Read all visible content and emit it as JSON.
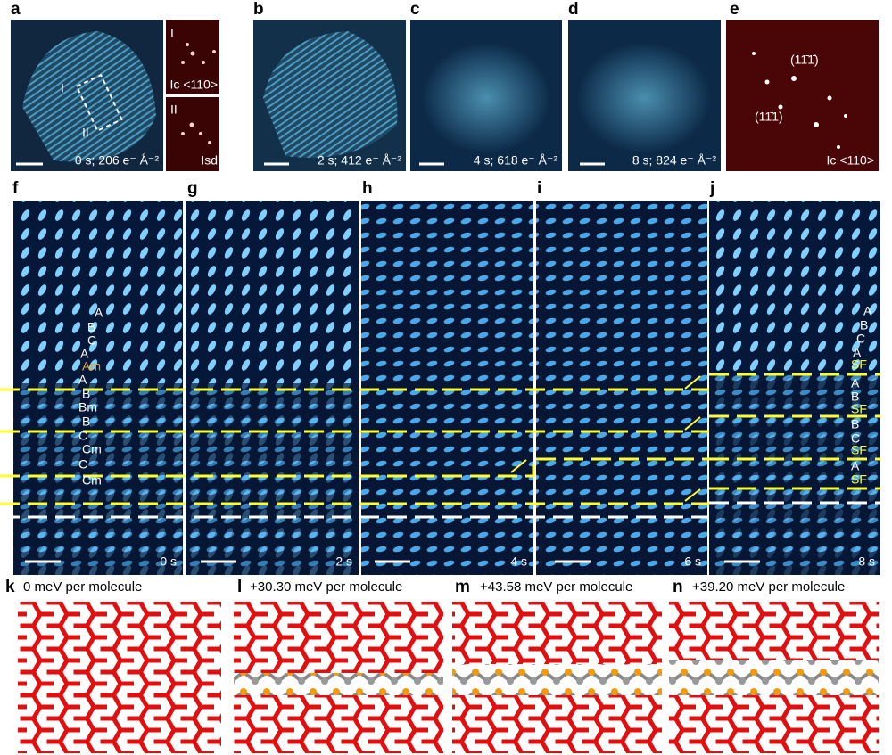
{
  "top": [
    {
      "label": "a",
      "regions": [
        "I",
        "II"
      ],
      "caption": "0 s; 206 e⁻ Å⁻²",
      "insets": [
        {
          "label": "I",
          "caption": "Ic <110>"
        },
        {
          "label": "II",
          "caption": "Isd"
        }
      ]
    },
    {
      "label": "b",
      "caption": "2 s; 412 e⁻ Å⁻²"
    },
    {
      "label": "c",
      "caption": "4 s; 618 e⁻ Å⁻²"
    },
    {
      "label": "d",
      "caption": "8 s; 824 e⁻ Å⁻²"
    },
    {
      "label": "e",
      "planes": [
        "(11̄1̄)",
        "(11̄1)"
      ],
      "caption": "Ic <110>"
    }
  ],
  "middle": [
    {
      "label": "f",
      "time": "0 s",
      "stacking": [
        "A",
        "B",
        "C",
        "A",
        "Am",
        "A",
        "B",
        "Bm",
        "B",
        "C",
        "Cm",
        "C",
        "Cm"
      ]
    },
    {
      "label": "g",
      "time": "2 s"
    },
    {
      "label": "h",
      "time": "4 s"
    },
    {
      "label": "i",
      "time": "6 s"
    },
    {
      "label": "j",
      "time": "8 s",
      "stacking": [
        "A",
        "B",
        "C",
        "A",
        "SF",
        "A",
        "B",
        "SF",
        "B",
        "C",
        "SF",
        "A",
        "SF"
      ]
    }
  ],
  "bottom": [
    {
      "label": "k",
      "energy": "0 meV per molecule"
    },
    {
      "label": "l",
      "energy": "+30.30 meV per molecule"
    },
    {
      "label": "m",
      "energy": "+43.58 meV per molecule"
    },
    {
      "label": "n",
      "energy": "+39.20 meV per molecule"
    }
  ]
}
